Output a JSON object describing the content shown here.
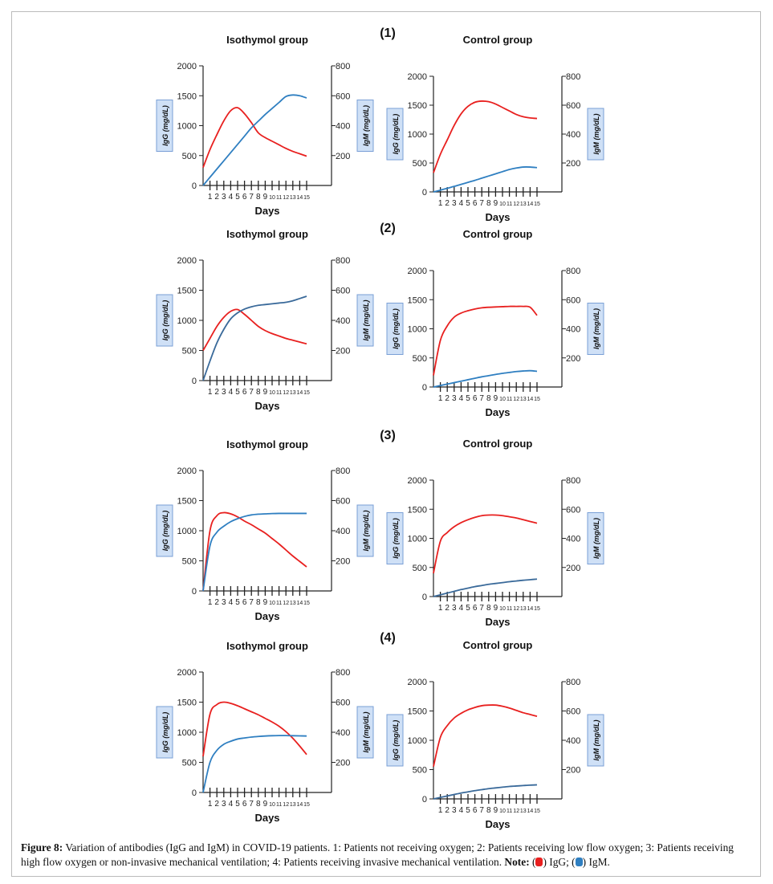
{
  "panels": [
    "(1)",
    "(2)",
    "(3)",
    "(4)"
  ],
  "caption": {
    "figure_label": "Figure 8:",
    "text": "Variation of antibodies (IgG and IgM) in COVID-19 patients. 1: Patients not receiving oxygen; 2: Patients receiving low flow oxygen; 3: Patients receiving high flow oxygen or non-invasive mechanical ventilation; 4: Patients receiving invasive mechanical ventilation.",
    "note_label": "Note:",
    "legend": [
      {
        "label": "IgG;",
        "color": "#e8201f"
      },
      {
        "label": "IgM.",
        "color": "#2f7fc1"
      }
    ]
  },
  "chart_data": [
    {
      "panel": "(1)",
      "title": "Isothymol group",
      "type": "line",
      "xlabel": "Days",
      "ylabel": "IgG (mg/dL)",
      "y2label": "IgM (mg/dL)",
      "ylim": [
        0,
        2000
      ],
      "y2lim": [
        0,
        800
      ],
      "yticks": [
        "0",
        "500",
        "1000",
        "1500",
        "2000"
      ],
      "y2ticks": [
        "200",
        "400",
        "600",
        "800"
      ],
      "xticks": [
        "1",
        "2",
        "3",
        "4",
        "5",
        "6",
        "7",
        "8",
        "9",
        "10",
        "11",
        "12",
        "13",
        "14",
        "15"
      ],
      "x": [
        0,
        1,
        2,
        3,
        4,
        5,
        6,
        7,
        8,
        9,
        10,
        11,
        12,
        13,
        14,
        15
      ],
      "series": [
        {
          "name": "IgG",
          "axis": "left",
          "color": "#e8201f",
          "values": [
            300,
            600,
            850,
            1080,
            1250,
            1300,
            1200,
            1050,
            880,
            800,
            740,
            680,
            620,
            570,
            530,
            490
          ]
        },
        {
          "name": "IgM",
          "axis": "right",
          "color": "#2f7fc1",
          "values": [
            0,
            55,
            110,
            165,
            220,
            275,
            330,
            385,
            430,
            475,
            515,
            555,
            595,
            605,
            600,
            585
          ]
        }
      ]
    },
    {
      "panel": "(1)",
      "title": "Control group",
      "type": "line",
      "xlabel": "Days",
      "ylabel": "IgG (mg/dL)",
      "y2label": "IgM (mg/dL)",
      "ylim": [
        0,
        2000
      ],
      "y2lim": [
        0,
        800
      ],
      "yticks": [
        "0",
        "500",
        "1000",
        "1500",
        "2000"
      ],
      "y2ticks": [
        "200",
        "400",
        "600",
        "800"
      ],
      "xticks": [
        "1",
        "2",
        "3",
        "4",
        "5",
        "6",
        "7",
        "8",
        "9",
        "10",
        "11",
        "12",
        "13",
        "14",
        "15"
      ],
      "x": [
        0,
        1,
        2,
        3,
        4,
        5,
        6,
        7,
        8,
        9,
        10,
        11,
        12,
        13,
        14,
        15
      ],
      "series": [
        {
          "name": "IgG",
          "axis": "left",
          "color": "#e8201f",
          "values": [
            330,
            650,
            900,
            1150,
            1350,
            1480,
            1550,
            1570,
            1560,
            1520,
            1460,
            1400,
            1340,
            1300,
            1280,
            1270
          ]
        },
        {
          "name": "IgM",
          "axis": "right",
          "color": "#2f7fc1",
          "values": [
            0,
            12,
            25,
            38,
            52,
            66,
            80,
            95,
            110,
            125,
            140,
            155,
            165,
            172,
            172,
            168
          ]
        }
      ]
    },
    {
      "panel": "(2)",
      "title": "Isothymol group",
      "type": "line",
      "xlabel": "Days",
      "ylabel": "IgG (mg/dL)",
      "y2label": "IgM (mg/dL)",
      "ylim": [
        0,
        2000
      ],
      "y2lim": [
        0,
        800
      ],
      "yticks": [
        "0",
        "500",
        "1000",
        "1500",
        "2000"
      ],
      "y2ticks": [
        "200",
        "400",
        "600",
        "800"
      ],
      "xticks": [
        "1",
        "2",
        "3",
        "4",
        "5",
        "6",
        "7",
        "8",
        "9",
        "10",
        "11",
        "12",
        "13",
        "14",
        "15"
      ],
      "x": [
        0,
        1,
        2,
        3,
        4,
        5,
        6,
        7,
        8,
        9,
        10,
        11,
        12,
        13,
        14,
        15
      ],
      "series": [
        {
          "name": "IgG",
          "axis": "left",
          "color": "#e8201f",
          "values": [
            500,
            700,
            900,
            1050,
            1150,
            1180,
            1100,
            1000,
            900,
            830,
            780,
            740,
            700,
            670,
            640,
            610
          ]
        },
        {
          "name": "IgM",
          "axis": "right",
          "color": "#3a6a9a",
          "values": [
            0,
            130,
            250,
            340,
            410,
            450,
            475,
            490,
            500,
            505,
            510,
            515,
            520,
            530,
            545,
            560
          ]
        }
      ]
    },
    {
      "panel": "(2)",
      "title": "Control group",
      "type": "line",
      "xlabel": "Days",
      "ylabel": "IgG (mg/dL)",
      "y2label": "IgM (mg/dL)",
      "ylim": [
        0,
        2000
      ],
      "y2lim": [
        0,
        800
      ],
      "yticks": [
        "0",
        "500",
        "1000",
        "1500",
        "2000"
      ],
      "y2ticks": [
        "200",
        "400",
        "600",
        "800"
      ],
      "xticks": [
        "1",
        "2",
        "3",
        "4",
        "5",
        "6",
        "7",
        "8",
        "9",
        "10",
        "11",
        "12",
        "13",
        "14",
        "15"
      ],
      "x": [
        0,
        1,
        2,
        3,
        4,
        5,
        6,
        7,
        8,
        9,
        10,
        11,
        12,
        13,
        14,
        15
      ],
      "series": [
        {
          "name": "IgG",
          "axis": "left",
          "color": "#e8201f",
          "values": [
            200,
            800,
            1050,
            1200,
            1270,
            1310,
            1340,
            1360,
            1370,
            1375,
            1380,
            1385,
            1385,
            1385,
            1370,
            1230
          ]
        },
        {
          "name": "IgM",
          "axis": "right",
          "color": "#2f7fc1",
          "values": [
            0,
            10,
            20,
            30,
            40,
            50,
            60,
            70,
            78,
            86,
            94,
            100,
            106,
            110,
            112,
            108
          ]
        }
      ]
    },
    {
      "panel": "(3)",
      "title": "Isothymol group",
      "type": "line",
      "xlabel": "Days",
      "ylabel": "IgG (mg/dL)",
      "y2label": "IgM (mg/dL)",
      "ylim": [
        0,
        2000
      ],
      "y2lim": [
        0,
        800
      ],
      "yticks": [
        "0",
        "500",
        "1000",
        "1500",
        "2000"
      ],
      "y2ticks": [
        "200",
        "400",
        "600",
        "800"
      ],
      "xticks": [
        "1",
        "2",
        "3",
        "4",
        "5",
        "6",
        "7",
        "8",
        "9",
        "10",
        "11",
        "12",
        "13",
        "14",
        "15"
      ],
      "x": [
        0,
        1,
        2,
        3,
        4,
        5,
        6,
        7,
        8,
        9,
        10,
        11,
        12,
        13,
        14,
        15
      ],
      "series": [
        {
          "name": "IgG",
          "axis": "left",
          "color": "#e8201f",
          "values": [
            0,
            1000,
            1250,
            1300,
            1280,
            1230,
            1160,
            1100,
            1030,
            960,
            870,
            780,
            680,
            580,
            490,
            400
          ]
        },
        {
          "name": "IgM",
          "axis": "right",
          "color": "#2f7fc1",
          "values": [
            0,
            300,
            390,
            430,
            460,
            480,
            495,
            505,
            510,
            512,
            514,
            515,
            515,
            515,
            515,
            515
          ]
        }
      ]
    },
    {
      "panel": "(3)",
      "title": "Control group",
      "type": "line",
      "xlabel": "Days",
      "ylabel": "IgG (mg/dL)",
      "y2label": "IgM (mg/dL)",
      "ylim": [
        0,
        2000
      ],
      "y2lim": [
        0,
        800
      ],
      "yticks": [
        "0",
        "500",
        "1000",
        "1500",
        "2000"
      ],
      "y2ticks": [
        "200",
        "400",
        "600",
        "800"
      ],
      "xticks": [
        "1",
        "2",
        "3",
        "4",
        "5",
        "6",
        "7",
        "8",
        "9",
        "10",
        "11",
        "12",
        "13",
        "14",
        "15"
      ],
      "x": [
        0,
        1,
        2,
        3,
        4,
        5,
        6,
        7,
        8,
        9,
        10,
        11,
        12,
        13,
        14,
        15
      ],
      "series": [
        {
          "name": "IgG",
          "axis": "left",
          "color": "#e8201f",
          "values": [
            400,
            950,
            1100,
            1200,
            1270,
            1320,
            1360,
            1390,
            1400,
            1400,
            1390,
            1370,
            1350,
            1320,
            1290,
            1260
          ]
        },
        {
          "name": "IgM",
          "axis": "right",
          "color": "#3a6a9a",
          "values": [
            0,
            12,
            24,
            36,
            48,
            58,
            68,
            76,
            84,
            90,
            96,
            102,
            107,
            112,
            116,
            120
          ]
        }
      ]
    },
    {
      "panel": "(4)",
      "title": "Isothymol group",
      "type": "line",
      "xlabel": "Days",
      "ylabel": "IgG (mg/dL)",
      "y2label": "IgM (mg/dL)",
      "ylim": [
        0,
        2000
      ],
      "y2lim": [
        0,
        800
      ],
      "yticks": [
        "0",
        "500",
        "1000",
        "1500",
        "2000"
      ],
      "y2ticks": [
        "200",
        "400",
        "600",
        "800"
      ],
      "xticks": [
        "1",
        "2",
        "3",
        "4",
        "5",
        "6",
        "7",
        "8",
        "9",
        "10",
        "11",
        "12",
        "13",
        "14",
        "15"
      ],
      "x": [
        0,
        1,
        2,
        3,
        4,
        5,
        6,
        7,
        8,
        9,
        10,
        11,
        12,
        13,
        14,
        15
      ],
      "series": [
        {
          "name": "IgG",
          "axis": "left",
          "color": "#e8201f",
          "values": [
            600,
            1300,
            1460,
            1500,
            1480,
            1440,
            1390,
            1340,
            1290,
            1230,
            1170,
            1100,
            1010,
            900,
            770,
            630
          ]
        },
        {
          "name": "IgM",
          "axis": "right",
          "color": "#2f7fc1",
          "values": [
            0,
            200,
            280,
            320,
            340,
            355,
            362,
            368,
            372,
            375,
            377,
            378,
            378,
            377,
            376,
            375
          ]
        }
      ]
    },
    {
      "panel": "(4)",
      "title": "Control group",
      "type": "line",
      "xlabel": "Days",
      "ylabel": "IgG (mg/dL)",
      "y2label": "IgM (mg/dL)",
      "ylim": [
        0,
        2000
      ],
      "y2lim": [
        0,
        800
      ],
      "yticks": [
        "0",
        "500",
        "1000",
        "1500",
        "2000"
      ],
      "y2ticks": [
        "200",
        "400",
        "600",
        "800"
      ],
      "xticks": [
        "1",
        "2",
        "3",
        "4",
        "5",
        "6",
        "7",
        "8",
        "9",
        "10",
        "11",
        "12",
        "13",
        "14",
        "15"
      ],
      "x": [
        0,
        1,
        2,
        3,
        4,
        5,
        6,
        7,
        8,
        9,
        10,
        11,
        12,
        13,
        14,
        15
      ],
      "series": [
        {
          "name": "IgG",
          "axis": "left",
          "color": "#e8201f",
          "values": [
            550,
            1050,
            1250,
            1380,
            1460,
            1520,
            1560,
            1590,
            1600,
            1600,
            1580,
            1550,
            1510,
            1470,
            1440,
            1410
          ]
        },
        {
          "name": "IgM",
          "axis": "right",
          "color": "#3a6a9a",
          "values": [
            0,
            10,
            20,
            30,
            40,
            48,
            56,
            63,
            70,
            75,
            80,
            85,
            88,
            91,
            94,
            96
          ]
        }
      ]
    }
  ]
}
